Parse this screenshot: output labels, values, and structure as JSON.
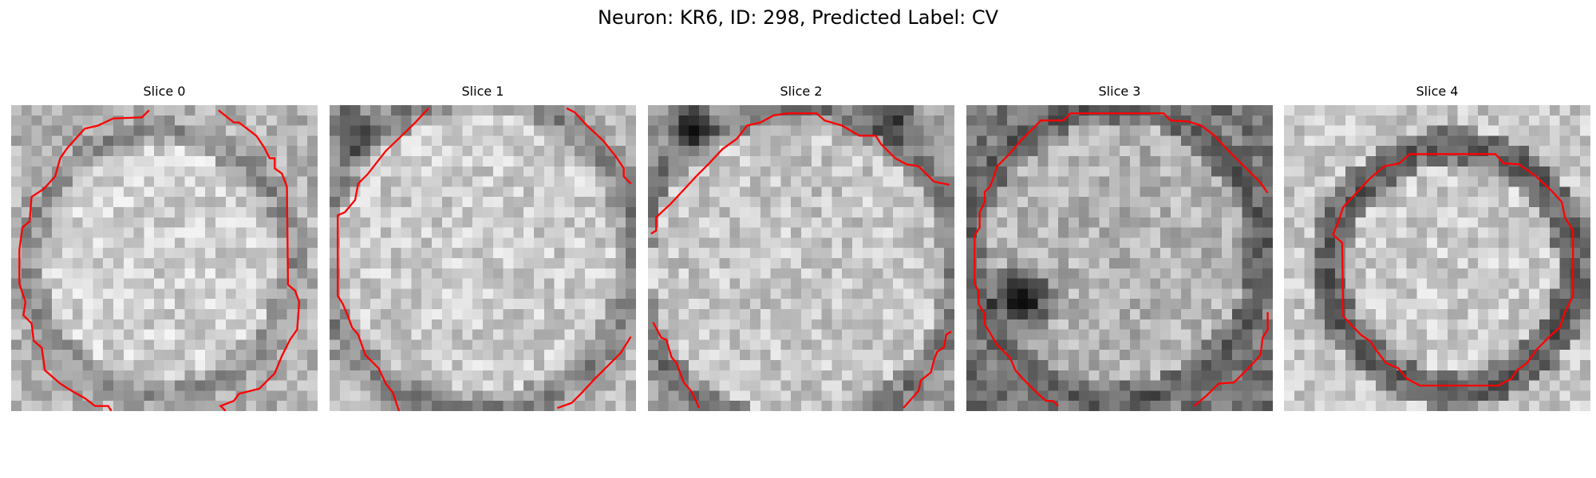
{
  "figure": {
    "title": "Neuron: KR6, ID: 298, Predicted Label: CV"
  },
  "colors": {
    "contour": "#ff0000",
    "background": "#ffffff"
  },
  "slices": [
    {
      "title": "Slice 0"
    },
    {
      "title": "Slice 1"
    },
    {
      "title": "Slice 2"
    },
    {
      "title": "Slice 3"
    },
    {
      "title": "Slice 4"
    }
  ]
}
